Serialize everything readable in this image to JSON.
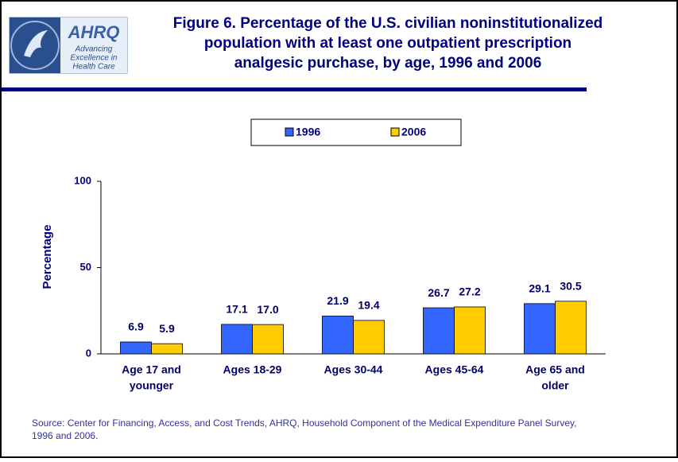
{
  "logo": {
    "name": "AHRQ",
    "tagline": [
      "Advancing",
      "Excellence in",
      "Health Care"
    ]
  },
  "chart_data": {
    "type": "bar",
    "title": [
      "Figure 6. Percentage of the U.S. civilian noninstitutionalized",
      "population with at least one outpatient prescription",
      "analgesic purchase, by age, 1996 and 2006"
    ],
    "categories": [
      [
        "Age 17 and",
        "younger"
      ],
      [
        "Ages 18-29"
      ],
      [
        "Ages 30-44"
      ],
      [
        "Ages 45-64"
      ],
      [
        "Age 65 and",
        "older"
      ]
    ],
    "series": [
      {
        "name": "1996",
        "color": "#3366ff",
        "values": [
          6.9,
          17.1,
          21.9,
          26.7,
          29.1
        ],
        "value_labels": [
          "6.9",
          "17.1",
          "21.9",
          "26.7",
          "29.1"
        ]
      },
      {
        "name": "2006",
        "color": "#ffcc00",
        "values": [
          5.9,
          17.0,
          19.4,
          27.2,
          30.5
        ],
        "value_labels": [
          "5.9",
          "17.0",
          "19.4",
          "27.2",
          "30.5"
        ]
      }
    ],
    "y_label": "Percentage",
    "ylim": [
      0,
      100
    ],
    "yticks": [
      0,
      50,
      100
    ],
    "legend": "top",
    "source": [
      "Source: Center for Financing, Access, and Cost Trends, AHRQ, Household Component of the Medical Expenditure Panel Survey,",
      "1996 and 2006."
    ]
  }
}
